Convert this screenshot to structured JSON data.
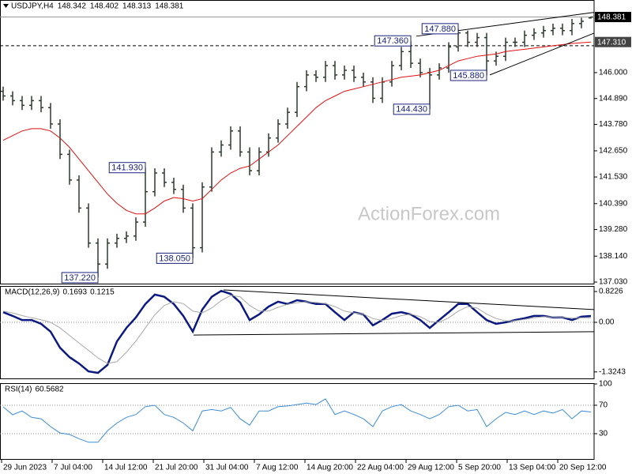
{
  "chart_data": [
    {
      "type": "ohlc",
      "title": "USDJPY,H4",
      "color": "#2a3a2a",
      "x": [
        2,
        8,
        14,
        20,
        26,
        32,
        38,
        44,
        50,
        56,
        62,
        68,
        74,
        80,
        86,
        92,
        98,
        104,
        110,
        116,
        122,
        128,
        134,
        140,
        146,
        152,
        158,
        164,
        170,
        176,
        182,
        188,
        194,
        200,
        206,
        212,
        218,
        224,
        230,
        236,
        242,
        248,
        254,
        260,
        266,
        272,
        278,
        284,
        290,
        296,
        302,
        308,
        314,
        320,
        326,
        332,
        338,
        344,
        350,
        356,
        362,
        368,
        374
      ],
      "open": [
        145.2,
        145.0,
        144.8,
        144.6,
        144.8,
        144.5,
        143.8,
        142.5,
        141.4,
        140.2,
        138.7,
        137.8,
        138.7,
        138.9,
        139.0,
        139.6,
        140.9,
        141.7,
        141.3,
        141.0,
        140.2,
        138.5,
        141.1,
        142.6,
        142.9,
        143.5,
        142.6,
        141.8,
        142.6,
        143.2,
        143.8,
        144.3,
        145.4,
        145.9,
        145.8,
        146.3,
        145.9,
        146.1,
        145.8,
        145.6,
        144.9,
        145.6,
        146.3,
        146.9,
        146.4,
        146.0,
        145.9,
        146.2,
        147.1,
        147.7,
        147.3,
        147.5,
        146.5,
        146.7,
        147.3,
        147.3,
        147.6,
        147.7,
        147.8,
        147.9,
        147.8,
        148.1,
        148.342
      ],
      "high": [
        145.4,
        145.2,
        145.0,
        145.0,
        145.0,
        144.7,
        144.0,
        142.7,
        141.6,
        140.4,
        138.9,
        138.9,
        139.1,
        139.2,
        139.8,
        141.93,
        141.9,
        141.9,
        141.5,
        141.2,
        140.4,
        141.3,
        142.8,
        143.1,
        143.7,
        143.7,
        142.8,
        142.8,
        143.4,
        144.0,
        144.5,
        145.6,
        146.1,
        146.1,
        146.5,
        146.5,
        146.3,
        146.3,
        146.0,
        145.8,
        145.8,
        146.5,
        147.1,
        147.36,
        146.6,
        146.2,
        146.4,
        147.3,
        147.88,
        147.8,
        147.7,
        147.7,
        146.9,
        147.5,
        147.5,
        147.8,
        147.9,
        148.0,
        148.1,
        148.1,
        148.3,
        148.35,
        148.402
      ],
      "low": [
        144.8,
        144.6,
        144.4,
        144.4,
        144.3,
        143.6,
        142.3,
        141.2,
        140.0,
        138.5,
        137.22,
        137.6,
        138.5,
        138.7,
        138.8,
        139.4,
        140.7,
        141.1,
        140.8,
        140.0,
        138.05,
        138.3,
        140.9,
        142.4,
        142.7,
        142.4,
        141.6,
        141.6,
        142.4,
        143.0,
        143.6,
        144.1,
        145.2,
        145.6,
        145.6,
        145.7,
        145.7,
        145.6,
        145.4,
        144.7,
        144.7,
        145.4,
        146.1,
        146.2,
        145.8,
        144.43,
        145.7,
        146.0,
        146.9,
        147.1,
        147.1,
        145.88,
        146.3,
        146.5,
        147.1,
        147.1,
        147.4,
        147.5,
        147.6,
        147.6,
        147.6,
        147.9,
        148.313
      ],
      "close": [
        145.0,
        144.8,
        144.6,
        144.8,
        144.5,
        143.8,
        142.5,
        141.4,
        140.2,
        138.7,
        137.8,
        138.7,
        138.9,
        139.0,
        139.6,
        140.9,
        141.7,
        141.3,
        141.0,
        140.2,
        138.5,
        141.1,
        142.6,
        142.9,
        143.5,
        142.6,
        141.8,
        142.6,
        143.2,
        143.8,
        144.3,
        145.4,
        145.9,
        145.8,
        146.3,
        145.9,
        146.1,
        145.8,
        145.6,
        144.9,
        145.6,
        146.3,
        146.9,
        146.4,
        146.0,
        145.9,
        146.2,
        147.1,
        147.7,
        147.3,
        147.5,
        146.5,
        146.7,
        147.3,
        147.3,
        147.6,
        147.7,
        147.8,
        147.9,
        147.8,
        148.1,
        148.2,
        148.381
      ],
      "overlays": [
        {
          "color": "#e01010",
          "values": [
            143.1,
            143.3,
            143.5,
            143.6,
            143.6,
            143.5,
            143.2,
            142.8,
            142.3,
            141.8,
            141.3,
            140.8,
            140.4,
            140.1,
            139.95,
            139.95,
            140.2,
            140.5,
            140.65,
            140.6,
            140.5,
            140.6,
            141.0,
            141.4,
            141.7,
            141.9,
            142.0,
            142.3,
            142.6,
            142.9,
            143.3,
            143.7,
            144.1,
            144.5,
            144.8,
            145.0,
            145.2,
            145.3,
            145.4,
            145.5,
            145.6,
            145.7,
            145.8,
            145.85,
            145.9,
            146.0,
            146.1,
            146.3,
            146.5,
            146.6,
            146.7,
            146.75,
            146.8,
            146.9,
            146.95,
            147.0,
            147.05,
            147.1,
            147.15,
            147.2,
            147.25,
            147.28,
            147.31
          ]
        }
      ],
      "current_ma": {
        "value": 147.31,
        "label": "147.310"
      },
      "xlim": [
        0,
        376
      ],
      "ylim": [
        136.93,
        149.11
      ],
      "yticks": [
        {
          "value": 146.0,
          "label": "146.000"
        },
        {
          "value": 144.89,
          "label": "144.890"
        },
        {
          "value": 143.78,
          "label": "143.780"
        },
        {
          "value": 142.65,
          "label": "142.650"
        },
        {
          "value": 141.53,
          "label": "141.530"
        },
        {
          "value": 140.39,
          "label": "140.390"
        },
        {
          "value": 139.28,
          "label": "139.280"
        },
        {
          "value": 138.14,
          "label": "138.140"
        },
        {
          "value": 137.03,
          "label": "137.030"
        }
      ],
      "annotations": [
        {
          "x": 62,
          "value": 137.22,
          "label": "137.220"
        },
        {
          "x": 92,
          "value": 141.93,
          "label": "141.930"
        },
        {
          "x": 122,
          "value": 138.05,
          "label": "138.050"
        },
        {
          "x": 272,
          "value": 144.43,
          "label": "144.430"
        },
        {
          "x": 260,
          "value": 147.36,
          "label": "147.360"
        },
        {
          "x": 290,
          "value": 147.88,
          "label": "147.880"
        },
        {
          "x": 308,
          "value": 145.88,
          "label": "145.880"
        }
      ],
      "trendlines": [
        {
          "x": [
            263.5,
            376
          ],
          "y": [
            147.56,
            148.58
          ]
        },
        {
          "x": [
            310,
            376
          ],
          "y": [
            145.9,
            147.69
          ]
        }
      ],
      "hlines": [
        147.15
      ],
      "watermark": "ActionForex.com"
    },
    {
      "type": "line",
      "title": "MACD(12,26,9)",
      "x": [
        2,
        8,
        14,
        20,
        26,
        32,
        38,
        44,
        50,
        56,
        62,
        68,
        74,
        80,
        86,
        92,
        98,
        104,
        110,
        116,
        122,
        128,
        134,
        140,
        146,
        152,
        158,
        164,
        170,
        176,
        182,
        188,
        194,
        200,
        206,
        212,
        218,
        224,
        230,
        236,
        242,
        248,
        254,
        260,
        266,
        272,
        278,
        284,
        290,
        296,
        302,
        308,
        314,
        320,
        326,
        332,
        338,
        344,
        350,
        356,
        362,
        368,
        374
      ],
      "series": [
        {
          "color": "#0c1a80",
          "width": 2.5,
          "values": [
            0.27,
            0.17,
            0.06,
            0.06,
            -0.04,
            -0.25,
            -0.68,
            -0.93,
            -1.1,
            -1.31,
            -1.35,
            -1.14,
            -0.51,
            -0.15,
            0.13,
            0.49,
            0.74,
            0.68,
            0.49,
            0.17,
            -0.25,
            0.34,
            0.68,
            0.84,
            0.76,
            0.53,
            0.06,
            0.21,
            0.42,
            0.55,
            0.49,
            0.59,
            0.55,
            0.49,
            0.49,
            0.27,
            0.06,
            0.27,
            0.21,
            -0.08,
            0.06,
            0.23,
            0.27,
            0.21,
            0.06,
            -0.15,
            0.06,
            0.27,
            0.49,
            0.49,
            0.27,
            0.06,
            -0.04,
            0.0,
            0.06,
            0.11,
            0.17,
            0.17,
            0.13,
            0.13,
            0.06,
            0.15,
            0.1693
          ]
        },
        {
          "color": "#a8a8a8",
          "width": 1,
          "values": [
            0.3,
            0.25,
            0.18,
            0.12,
            0.07,
            0.0,
            -0.15,
            -0.35,
            -0.55,
            -0.75,
            -0.95,
            -1.1,
            -1.05,
            -0.8,
            -0.5,
            -0.15,
            0.2,
            0.45,
            0.55,
            0.5,
            0.3,
            0.25,
            0.38,
            0.58,
            0.72,
            0.68,
            0.45,
            0.3,
            0.3,
            0.4,
            0.48,
            0.52,
            0.55,
            0.53,
            0.5,
            0.42,
            0.3,
            0.25,
            0.22,
            0.1,
            0.05,
            0.1,
            0.18,
            0.22,
            0.15,
            0.02,
            0.0,
            0.12,
            0.3,
            0.42,
            0.38,
            0.22,
            0.1,
            0.04,
            0.04,
            0.08,
            0.12,
            0.15,
            0.14,
            0.13,
            0.11,
            0.12,
            0.1215
          ]
        }
      ],
      "xlim": [
        0,
        376
      ],
      "ylim": [
        -1.519,
        0.97
      ],
      "yticks": [
        0.8226,
        {
          "value": 0,
          "label": "0.00"
        },
        -1.3243
      ],
      "levels": [
        0
      ],
      "trendlines": [
        {
          "x": [
            141.5,
            376
          ],
          "y": [
            0.865,
            0.34
          ]
        },
        {
          "x": [
            122.5,
            376
          ],
          "y": [
            -0.34,
            -0.25
          ]
        }
      ]
    },
    {
      "type": "line",
      "title": "RSI(14)",
      "x": [
        2,
        8,
        14,
        20,
        26,
        32,
        38,
        44,
        50,
        56,
        62,
        68,
        74,
        80,
        86,
        92,
        98,
        104,
        110,
        116,
        122,
        128,
        134,
        140,
        146,
        152,
        158,
        164,
        170,
        176,
        182,
        188,
        194,
        200,
        206,
        212,
        218,
        224,
        230,
        236,
        242,
        248,
        254,
        260,
        266,
        272,
        278,
        284,
        290,
        296,
        302,
        308,
        314,
        320,
        326,
        332,
        338,
        344,
        350,
        356,
        362,
        368,
        374
      ],
      "series": [
        {
          "color": "#3c8dd8",
          "width": 1,
          "values": [
            67.8,
            56.7,
            62,
            53,
            51,
            40,
            31,
            29,
            23,
            18,
            18,
            34,
            45,
            53,
            57,
            68,
            70,
            57,
            53,
            45,
            34,
            62,
            64,
            62,
            67,
            51,
            42,
            62,
            62,
            68,
            69,
            71,
            73,
            71,
            79,
            57,
            62,
            57,
            51,
            40,
            62,
            68,
            71,
            62,
            57,
            51,
            57,
            68,
            70,
            62,
            64,
            40,
            51,
            60,
            57,
            62,
            57,
            62,
            59,
            64,
            51,
            62,
            60.5682
          ]
        }
      ],
      "xlim": [
        0,
        376
      ],
      "ylim": [
        -6.7,
        101.1
      ],
      "yticks": [
        100,
        70,
        30
      ],
      "levels": [
        30,
        70
      ],
      "xticks": [
        {
          "value": 1,
          "label": "29 Jun 2023"
        },
        {
          "value": 33,
          "label": "7 Jul 04:00"
        },
        {
          "value": 65,
          "label": "14 Jul 12:00"
        },
        {
          "value": 97,
          "label": "21 Jul 20:00"
        },
        {
          "value": 129,
          "label": "31 Jul 04:00"
        },
        {
          "value": 161,
          "label": "7 Aug 12:00"
        },
        {
          "value": 193,
          "label": "14 Aug 20:00"
        },
        {
          "value": 225,
          "label": "22 Aug 04:00"
        },
        {
          "value": 257,
          "label": "29 Aug 12:00"
        },
        {
          "value": 289,
          "label": "5 Sep 20:00"
        },
        {
          "value": 321,
          "label": "13 Sep 04:00"
        },
        {
          "value": 353,
          "label": "20 Sep 12:00"
        }
      ]
    }
  ]
}
